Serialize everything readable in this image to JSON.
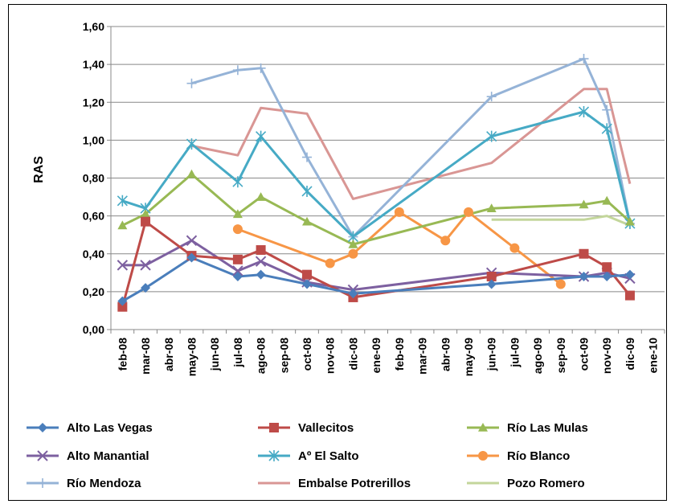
{
  "chart_data": {
    "type": "line",
    "title": "",
    "xlabel": "",
    "ylabel": "RAS",
    "ylim": [
      0,
      1.6
    ],
    "y_ticks": [
      "0,00",
      "0,20",
      "0,40",
      "0,60",
      "0,80",
      "1,00",
      "1,20",
      "1,40",
      "1,60"
    ],
    "categories": [
      "feb-08",
      "mar-08",
      "abr-08",
      "may-08",
      "jun-08",
      "jul-08",
      "ago-08",
      "sep-08",
      "oct-08",
      "nov-08",
      "dic-08",
      "ene-09",
      "feb-09",
      "mar-09",
      "abr-09",
      "may-09",
      "jun-09",
      "jul-09",
      "ago-09",
      "sep-09",
      "oct-09",
      "nov-09",
      "dic-09",
      "ene-10"
    ],
    "grid": "horizontal",
    "legend_position": "bottom",
    "series": [
      {
        "name": "Alto Las Vegas",
        "color": "#4a7ebb",
        "marker": "diamond",
        "points": [
          [
            0,
            0.15
          ],
          [
            1,
            0.22
          ],
          [
            3,
            0.38
          ],
          [
            5,
            0.28
          ],
          [
            6,
            0.29
          ],
          [
            8,
            0.24
          ],
          [
            10,
            0.19
          ],
          [
            16,
            0.24
          ],
          [
            20,
            0.28
          ],
          [
            21,
            0.28
          ],
          [
            22,
            0.29
          ]
        ]
      },
      {
        "name": "Vallecitos",
        "color": "#be4b48",
        "marker": "square",
        "points": [
          [
            0,
            0.12
          ],
          [
            1,
            0.57
          ],
          [
            3,
            0.39
          ],
          [
            5,
            0.37
          ],
          [
            6,
            0.42
          ],
          [
            8,
            0.29
          ],
          [
            10,
            0.17
          ],
          [
            16,
            0.28
          ],
          [
            20,
            0.4
          ],
          [
            21,
            0.33
          ],
          [
            22,
            0.18
          ]
        ]
      },
      {
        "name": "Río Las Mulas",
        "color": "#98b954",
        "marker": "triangle",
        "points": [
          [
            0,
            0.55
          ],
          [
            1,
            0.61
          ],
          [
            3,
            0.82
          ],
          [
            5,
            0.61
          ],
          [
            6,
            0.7
          ],
          [
            8,
            0.57
          ],
          [
            10,
            0.45
          ],
          [
            16,
            0.64
          ],
          [
            20,
            0.66
          ],
          [
            21,
            0.68
          ],
          [
            22,
            0.57
          ]
        ]
      },
      {
        "name": "Alto Manantial",
        "color": "#7d60a0",
        "marker": "x",
        "points": [
          [
            0,
            0.34
          ],
          [
            1,
            0.34
          ],
          [
            3,
            0.47
          ],
          [
            5,
            0.31
          ],
          [
            6,
            0.36
          ],
          [
            8,
            0.25
          ],
          [
            10,
            0.21
          ],
          [
            16,
            0.3
          ],
          [
            20,
            0.28
          ],
          [
            21,
            0.3
          ],
          [
            22,
            0.27
          ]
        ]
      },
      {
        "name": "Aº El Salto",
        "color": "#46aac5",
        "marker": "star",
        "points": [
          [
            0,
            0.68
          ],
          [
            1,
            0.64
          ],
          [
            3,
            0.98
          ],
          [
            5,
            0.78
          ],
          [
            6,
            1.02
          ],
          [
            8,
            0.73
          ],
          [
            10,
            0.49
          ],
          [
            16,
            1.02
          ],
          [
            20,
            1.15
          ],
          [
            21,
            1.06
          ],
          [
            22,
            0.56
          ]
        ]
      },
      {
        "name": "Río Blanco",
        "color": "#f79646",
        "marker": "circle",
        "points": [
          [
            5,
            0.53
          ],
          [
            9,
            0.35
          ],
          [
            10,
            0.4
          ],
          [
            12,
            0.62
          ],
          [
            14,
            0.47
          ],
          [
            15,
            0.62
          ],
          [
            17,
            0.43
          ],
          [
            19,
            0.24
          ]
        ]
      },
      {
        "name": "Río Mendoza",
        "color": "#95b3d7",
        "marker": "plus",
        "points": [
          [
            3,
            1.3
          ],
          [
            5,
            1.37
          ],
          [
            6,
            1.38
          ],
          [
            8,
            0.91
          ],
          [
            10,
            0.49
          ],
          [
            16,
            1.23
          ],
          [
            20,
            1.43
          ],
          [
            21,
            1.16
          ],
          [
            22,
            0.56
          ]
        ]
      },
      {
        "name": "Embalse Potrerillos",
        "color": "#d99694",
        "marker": "none",
        "points": [
          [
            3,
            0.97
          ],
          [
            5,
            0.92
          ],
          [
            6,
            1.17
          ],
          [
            8,
            1.14
          ],
          [
            10,
            0.69
          ],
          [
            16,
            0.88
          ],
          [
            20,
            1.27
          ],
          [
            21,
            1.27
          ],
          [
            22,
            0.77
          ]
        ]
      },
      {
        "name": "Pozo Romero",
        "color": "#c3d69b",
        "marker": "none",
        "points": [
          [
            16,
            0.58
          ],
          [
            20,
            0.58
          ],
          [
            21,
            0.6
          ],
          [
            22,
            0.55
          ]
        ]
      }
    ]
  }
}
